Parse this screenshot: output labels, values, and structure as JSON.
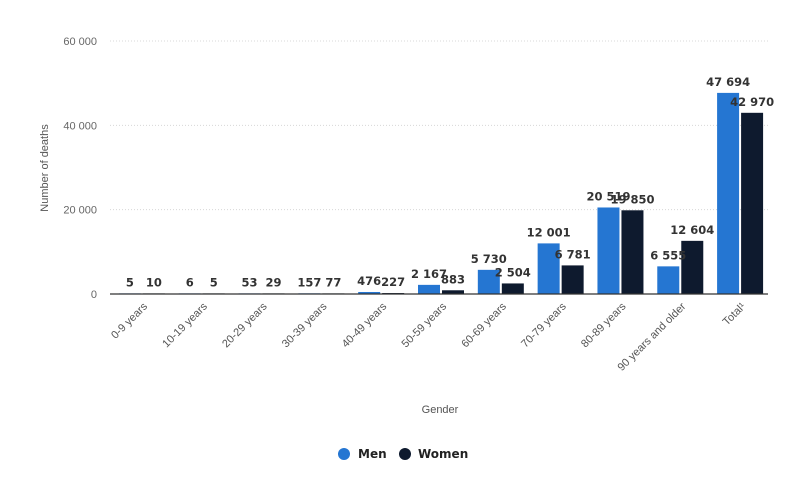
{
  "chart_data": {
    "type": "bar",
    "categories": [
      "0-9 years",
      "10-19 years",
      "20-29 years",
      "30-39 years",
      "40-49 years",
      "50-59 years",
      "60-69 years",
      "70-79 years",
      "80-89 years",
      "90 years and older",
      "Total¹"
    ],
    "series": [
      {
        "name": "Men",
        "values": [
          5,
          6,
          53,
          157,
          476,
          2167,
          5730,
          12001,
          20519,
          6555,
          47694
        ],
        "labels": [
          "5",
          "6",
          "53",
          "157",
          "476",
          "2 167",
          "5 730",
          "12 001",
          "20 519",
          "6 555",
          "47 694"
        ],
        "color": "#2576d2"
      },
      {
        "name": "Women",
        "values": [
          10,
          5,
          29,
          77,
          227,
          883,
          2504,
          6781,
          19850,
          12604,
          42970
        ],
        "labels": [
          "10",
          "5",
          "29",
          "77",
          "227",
          "883",
          "2 504",
          "6 781",
          "19 850",
          "12 604",
          "42 970"
        ],
        "color": "#0e1a2e"
      }
    ],
    "xlabel": "Gender",
    "ylabel": "Number of deaths",
    "ylim": [
      0,
      60000
    ],
    "yticks": [
      0,
      20000,
      40000,
      60000
    ],
    "ytick_labels": [
      "0",
      "20 000",
      "40 000",
      "60 000"
    ],
    "grid": true,
    "legend_position": "bottom"
  }
}
